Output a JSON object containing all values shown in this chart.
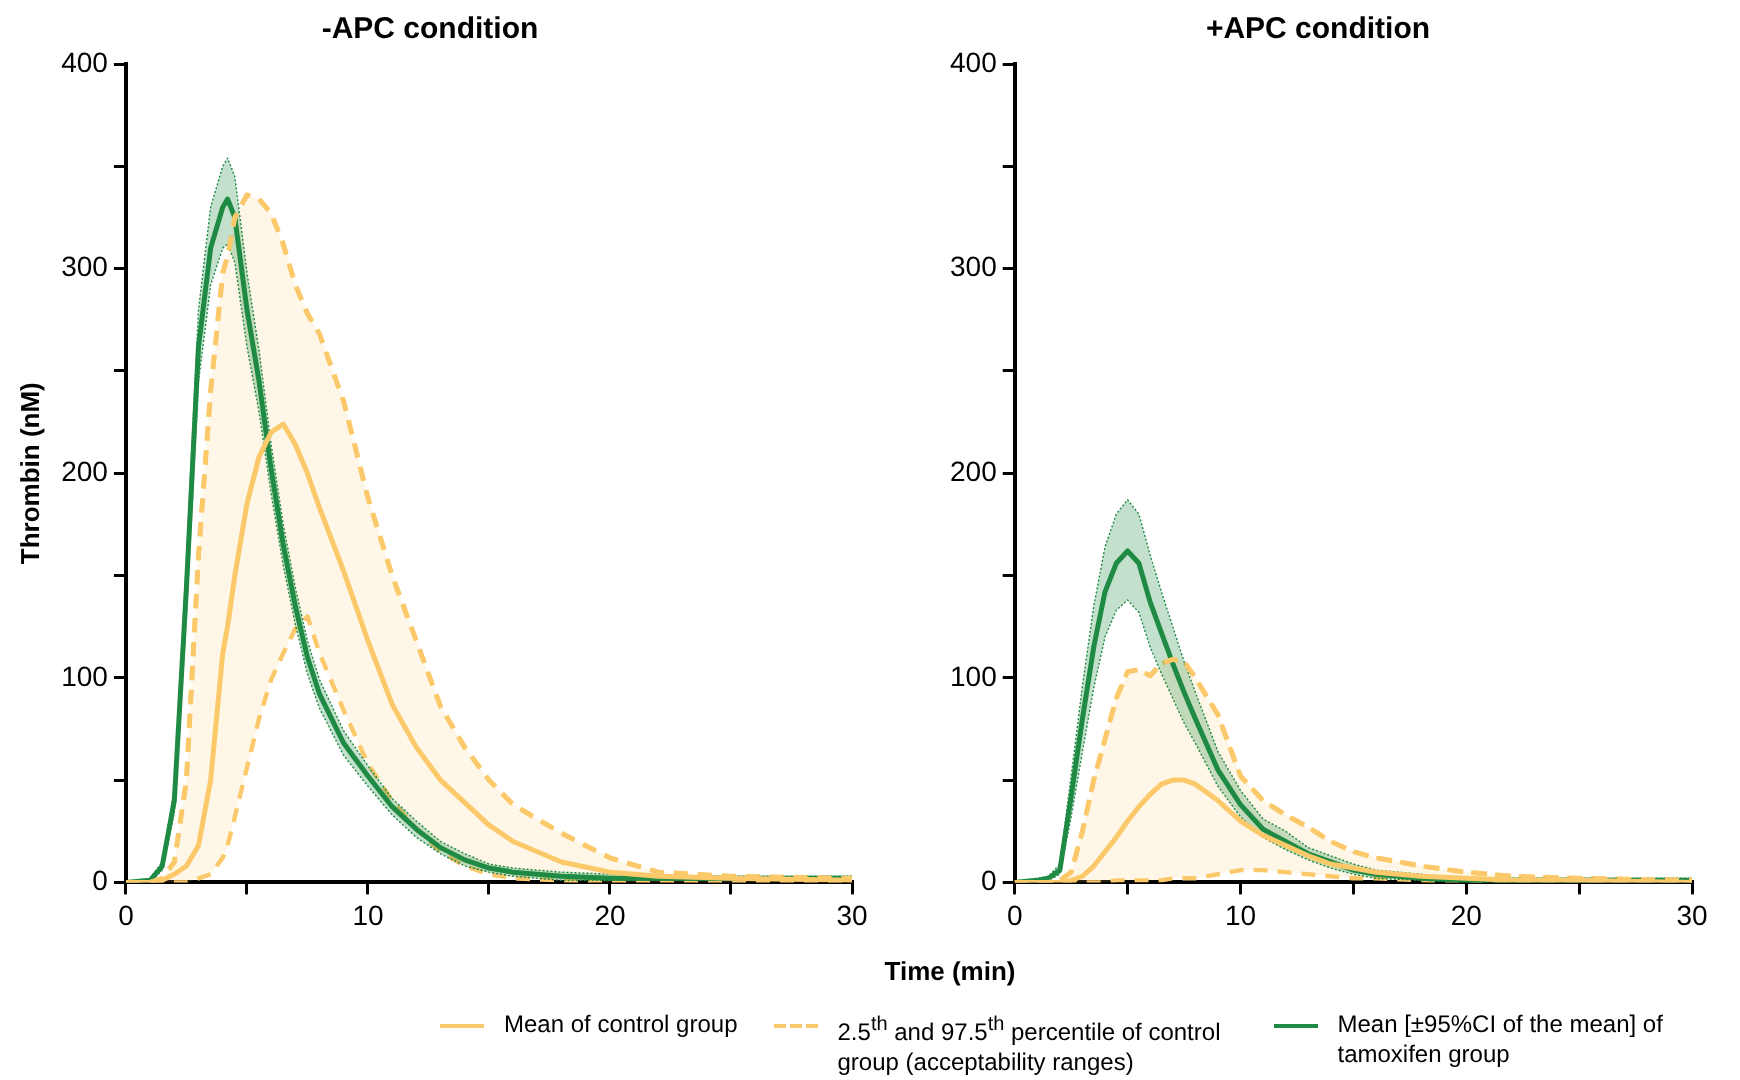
{
  "chart_data": [
    {
      "type": "line",
      "title": "-APC condition",
      "xlabel": "Time (min)",
      "ylabel": "Thrombin (nM)",
      "legend": "bottom",
      "grid": false,
      "marker": "none",
      "xlim": [
        0,
        30
      ],
      "xticks": [
        0,
        {
          "value": 5,
          "label": null
        },
        10,
        {
          "value": 15,
          "label": null
        },
        20,
        {
          "value": 25,
          "label": null
        },
        30
      ],
      "ylim": [
        0,
        400
      ],
      "yticks": [
        0,
        {
          "value": 50,
          "label": null
        },
        100,
        {
          "value": 150,
          "label": null
        },
        200,
        {
          "value": 250,
          "label": null
        },
        300,
        {
          "value": 350,
          "label": null
        },
        400
      ],
      "x": [
        0,
        1,
        1.5,
        2,
        2.5,
        3,
        3.5,
        4,
        4.2,
        4.5,
        5,
        5.5,
        6,
        6.5,
        7,
        7.5,
        8,
        9,
        10,
        11,
        12,
        13,
        14,
        15,
        16,
        18,
        20,
        22,
        25,
        30
      ],
      "series": [
        {
          "name": "Mean of control group",
          "color": "#fbc96a",
          "line_style": "solid",
          "values": [
            0,
            0,
            1,
            4,
            8,
            18,
            50,
            112,
            125,
            150,
            185,
            208,
            220,
            224,
            214,
            200,
            183,
            152,
            118,
            87,
            66,
            50,
            39,
            28,
            20,
            10,
            5,
            3,
            2,
            1
          ]
        },
        {
          "name": "2.5$^{th}$ and 97.5$^{th}$ percentile of control group (acceptability ranges)",
          "color": "#fbc96a",
          "line_style": "dashed",
          "lower": [
            0,
            0,
            0,
            0,
            0,
            2,
            4,
            12,
            18,
            32,
            56,
            80,
            99,
            112,
            124,
            130,
            112,
            84,
            58,
            40,
            26,
            15,
            8,
            4,
            2,
            1,
            0,
            0,
            0,
            0
          ],
          "values": [
            0,
            0,
            2,
            10,
            50,
            160,
            240,
            298,
            306,
            325,
            336,
            334,
            327,
            312,
            292,
            278,
            268,
            235,
            188,
            150,
            118,
            86,
            66,
            50,
            38,
            24,
            12,
            5,
            3,
            2
          ],
          "upper": [
            0,
            0,
            2,
            10,
            50,
            160,
            240,
            298,
            306,
            325,
            336,
            334,
            327,
            312,
            292,
            278,
            268,
            235,
            188,
            150,
            118,
            86,
            66,
            50,
            38,
            24,
            12,
            5,
            3,
            2
          ]
        },
        {
          "name": "Mean [±95%CI of the mean] of tamoxifen group",
          "color": "#1e8a44",
          "line_style": "solid",
          "values": [
            0,
            1,
            8,
            40,
            144,
            262,
            310,
            330,
            334,
            325,
            280,
            245,
            202,
            165,
            135,
            110,
            92,
            68,
            52,
            37,
            26,
            17,
            11,
            7,
            5,
            3,
            2,
            2,
            2,
            2
          ],
          "lower": [
            0,
            0,
            6,
            34,
            130,
            245,
            292,
            310,
            312,
            303,
            262,
            230,
            190,
            155,
            126,
            102,
            85,
            62,
            47,
            33,
            22,
            14,
            8,
            5,
            3,
            1,
            1,
            1,
            1,
            1
          ],
          "upper": [
            0,
            2,
            10,
            46,
            158,
            280,
            330,
            350,
            354,
            345,
            298,
            260,
            214,
            175,
            144,
            118,
            99,
            74,
            57,
            41,
            30,
            20,
            14,
            9,
            7,
            5,
            4,
            3,
            3,
            3
          ]
        }
      ]
    },
    {
      "type": "line",
      "title": "+APC condition",
      "grid": false,
      "marker": "none",
      "xlim": [
        0,
        30
      ],
      "xticks": [
        0,
        {
          "value": 5,
          "label": null
        },
        10,
        {
          "value": 15,
          "label": null
        },
        20,
        {
          "value": 25,
          "label": null
        },
        30
      ],
      "ylim": [
        0,
        400
      ],
      "yticks": [
        0,
        {
          "value": 50,
          "label": null
        },
        100,
        {
          "value": 150,
          "label": null
        },
        200,
        {
          "value": 250,
          "label": null
        },
        300,
        {
          "value": 350,
          "label": null
        },
        400
      ],
      "x": [
        0,
        1,
        1.5,
        2,
        2.5,
        3,
        3.5,
        4,
        4.5,
        5,
        5.5,
        6,
        6.5,
        7,
        7.5,
        8,
        9,
        10,
        11,
        12,
        13,
        14,
        15,
        16,
        18,
        20,
        22,
        25,
        30
      ],
      "series": [
        {
          "color": "#fbc96a",
          "line_style": "solid",
          "values": [
            0,
            0,
            0,
            0,
            1,
            3,
            8,
            15,
            22,
            30,
            37,
            43,
            48,
            50,
            50,
            48,
            40,
            30,
            23,
            18,
            13,
            9,
            7,
            5,
            3,
            2,
            1,
            1,
            0
          ]
        },
        {
          "color": "#fbc96a",
          "line_style": "dashed",
          "lower": [
            0,
            0,
            0,
            0,
            0,
            0,
            0,
            0,
            1,
            1,
            1,
            1,
            1,
            2,
            2,
            2,
            4,
            6,
            6,
            5,
            4,
            3,
            2,
            2,
            1,
            0,
            0,
            0,
            0
          ],
          "values": [
            0,
            0,
            0,
            1,
            5,
            25,
            50,
            70,
            90,
            103,
            104,
            101,
            107,
            109,
            108,
            100,
            82,
            52,
            40,
            33,
            27,
            20,
            15,
            12,
            8,
            5,
            3,
            2,
            1
          ],
          "upper": [
            0,
            0,
            0,
            1,
            5,
            25,
            50,
            70,
            90,
            103,
            104,
            101,
            107,
            109,
            108,
            100,
            82,
            52,
            40,
            33,
            27,
            20,
            15,
            12,
            8,
            5,
            3,
            2,
            1
          ]
        },
        {
          "color": "#1e8a44",
          "line_style": "solid",
          "values": [
            0,
            1,
            2,
            6,
            42,
            80,
            115,
            142,
            156,
            162,
            156,
            137,
            122,
            107,
            93,
            80,
            55,
            38,
            26,
            20,
            14,
            10,
            6,
            4,
            2,
            1,
            1,
            1,
            1
          ],
          "lower": [
            0,
            0,
            1,
            4,
            32,
            64,
            95,
            120,
            133,
            138,
            132,
            115,
            102,
            90,
            78,
            68,
            47,
            32,
            22,
            16,
            11,
            7,
            4,
            2,
            1,
            0,
            0,
            0,
            0
          ],
          "upper": [
            0,
            2,
            3,
            9,
            52,
            96,
            135,
            164,
            180,
            187,
            180,
            160,
            142,
            125,
            108,
            93,
            64,
            45,
            31,
            25,
            17,
            13,
            9,
            6,
            4,
            2,
            2,
            2,
            2
          ]
        }
      ]
    }
  ]
}
